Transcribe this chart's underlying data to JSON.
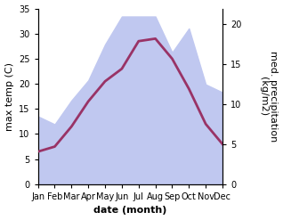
{
  "months": [
    "Jan",
    "Feb",
    "Mar",
    "Apr",
    "May",
    "Jun",
    "Jul",
    "Aug",
    "Sep",
    "Oct",
    "Nov",
    "Dec"
  ],
  "month_positions": [
    0,
    1,
    2,
    3,
    4,
    5,
    6,
    7,
    8,
    9,
    10,
    11
  ],
  "temp": [
    6.5,
    7.5,
    11.5,
    16.5,
    20.5,
    23.0,
    28.5,
    29.0,
    25.0,
    19.0,
    12.0,
    8.0
  ],
  "precip": [
    8.5,
    7.5,
    10.5,
    13.0,
    17.5,
    21.0,
    21.0,
    21.0,
    16.5,
    19.5,
    12.5,
    11.5
  ],
  "temp_color": "#993366",
  "precip_fill_color": "#c0c8f0",
  "temp_ylim": [
    0,
    35
  ],
  "temp_yticks": [
    0,
    5,
    10,
    15,
    20,
    25,
    30,
    35
  ],
  "precip_ylim": [
    0,
    22
  ],
  "precip_yticks": [
    0,
    5,
    10,
    15,
    20
  ],
  "ylabel_left": "max temp (C)",
  "ylabel_right": "med. precipitation\n(kg/m2)",
  "xlabel": "date (month)",
  "temp_linewidth": 2.0,
  "fig_bg": "#ffffff",
  "axes_bg": "#ffffff",
  "tick_fontsize": 7,
  "label_fontsize": 8,
  "xlabel_fontsize": 8
}
